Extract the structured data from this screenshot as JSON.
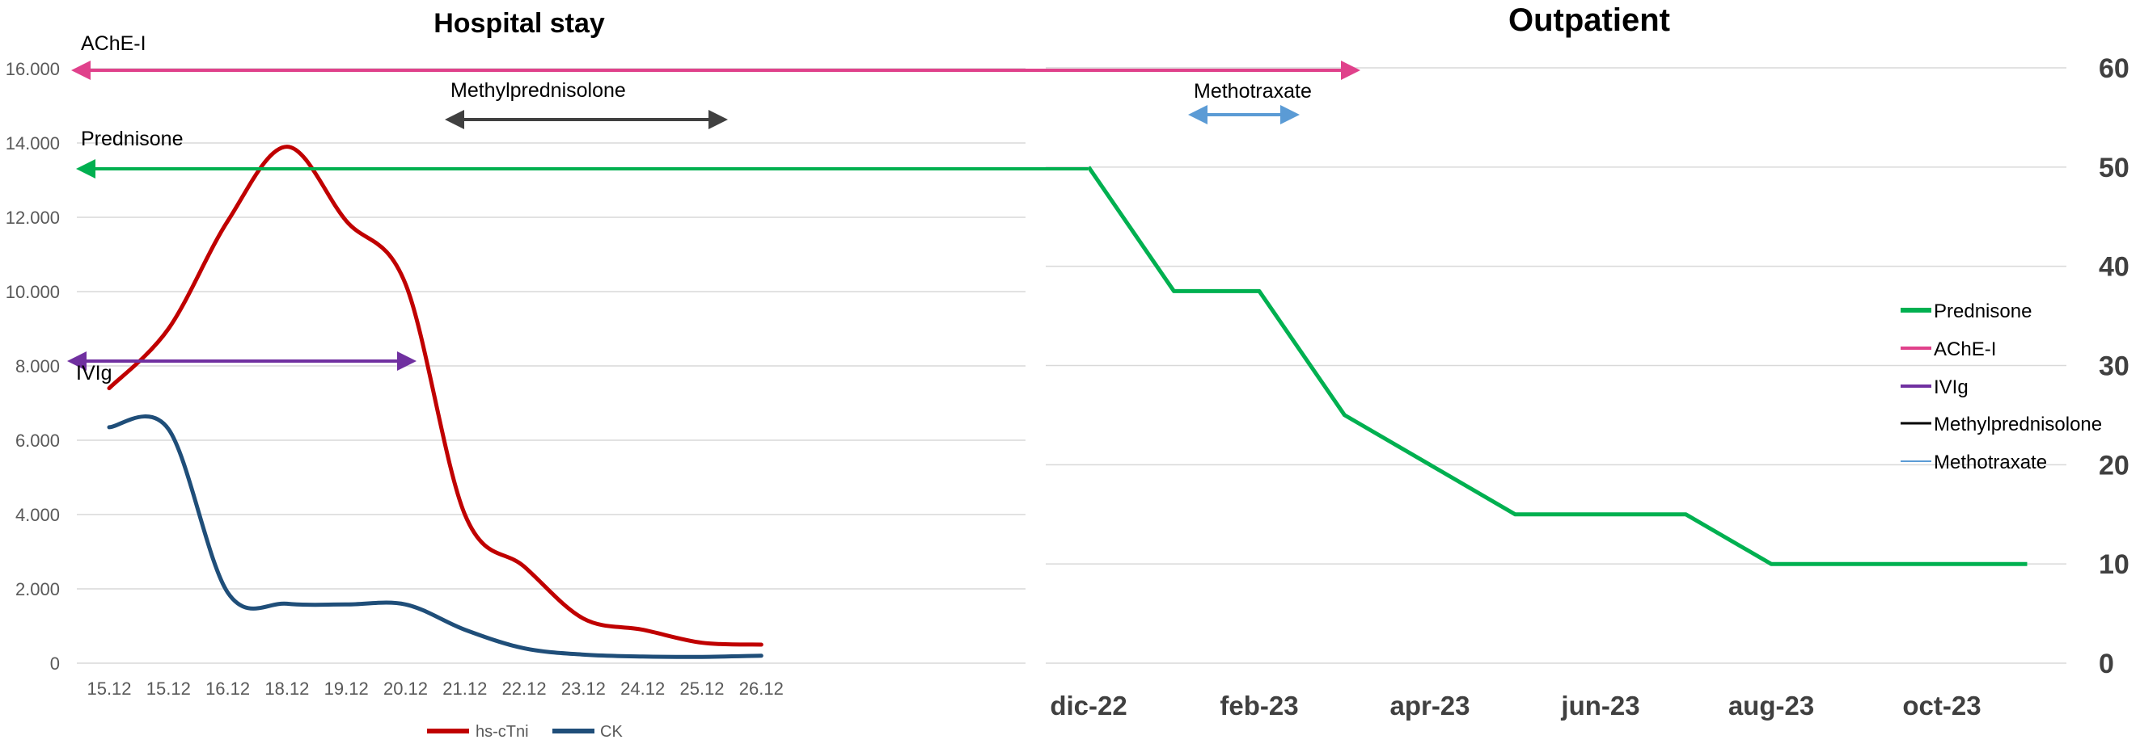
{
  "chart_data": [
    {
      "type": "line",
      "title": "Hospital stay",
      "categories": [
        "15.12",
        "15.12",
        "16.12",
        "18.12",
        "19.12",
        "20.12",
        "21.12",
        "22.12",
        "23.12",
        "24.12",
        "25.12",
        "26.12"
      ],
      "ylim": [
        0,
        16000
      ],
      "yticks": [
        "0",
        "2.000",
        "4.000",
        "6.000",
        "8.000",
        "10.000",
        "12.000",
        "14.000",
        "16.000"
      ],
      "grid": true,
      "legend_position": "bottom",
      "series": [
        {
          "name": "hs-cTni",
          "color": "#C00000",
          "values": [
            7400,
            9000,
            11900,
            13900,
            11900,
            10200,
            4000,
            2600,
            1200,
            900,
            550,
            500
          ]
        },
        {
          "name": "CK",
          "color": "#1F4E79",
          "values": [
            6350,
            6300,
            1900,
            1600,
            1580,
            1580,
            900,
            400,
            230,
            180,
            170,
            200
          ]
        }
      ]
    },
    {
      "type": "line",
      "title": "Outpatient",
      "xticks": [
        "dic-22",
        "feb-23",
        "apr-23",
        "jun-23",
        "aug-23",
        "oct-23"
      ],
      "ylim": [
        0,
        60
      ],
      "yticks": [
        "0",
        "10",
        "20",
        "30",
        "40",
        "50",
        "60"
      ],
      "grid": true,
      "legend_position": "right",
      "series": [
        {
          "name": "Prednisone",
          "color": "#00B050",
          "values": [
            50,
            37.5,
            37.5,
            25,
            20,
            15,
            15,
            15,
            10,
            10,
            10,
            10
          ]
        }
      ],
      "legend": [
        {
          "name": "Prednisone",
          "color": "#00B050"
        },
        {
          "name": "AChE-I",
          "color": "#E0418B"
        },
        {
          "name": "IVIg",
          "color": "#7030A0"
        },
        {
          "name": "Methylprednisolone",
          "color": "#000000"
        },
        {
          "name": "Methotraxate",
          "color": "#5B9BD5"
        }
      ]
    }
  ],
  "treatments": [
    {
      "name": "AChE-I",
      "color": "#E0418B"
    },
    {
      "name": "Methylprednisolone",
      "color": "#404040"
    },
    {
      "name": "Methotraxate",
      "color": "#5B9BD5"
    },
    {
      "name": "Prednisone",
      "color": "#00B050"
    },
    {
      "name": "IVIg",
      "color": "#7030A0"
    }
  ]
}
